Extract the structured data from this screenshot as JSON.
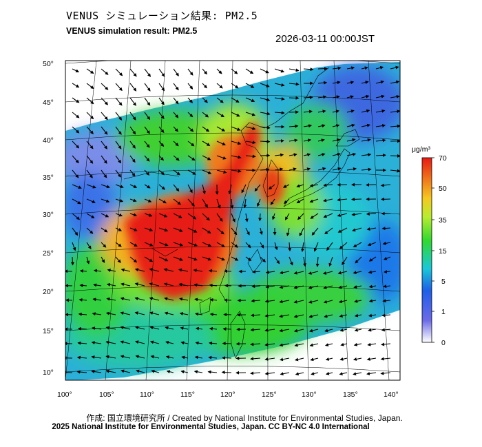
{
  "header": {
    "title_jp": "VENUS シミュレーション結果: PM2.5",
    "title_en": "VENUS simulation result: PM2.5",
    "timestamp": "2026-03-11 00:00JST"
  },
  "map": {
    "lat_ticks": [
      "50°",
      "45°",
      "40°",
      "35°",
      "30°",
      "25°",
      "20°",
      "15°",
      "10°"
    ],
    "lon_ticks": [
      "100°",
      "105°",
      "110°",
      "115°",
      "120°",
      "125°",
      "130°",
      "135°",
      "140°"
    ],
    "quantity": "PM2.5",
    "high_concentration_region": "eastern China / Korean Peninsula"
  },
  "colorbar": {
    "unit": "μg/m³",
    "labels": [
      "70",
      "50",
      "35",
      "15",
      "5",
      "1",
      "0"
    ],
    "colors": [
      "#ffffff",
      "#6a6ae8",
      "#1e5fe8",
      "#19c8d8",
      "#30d830",
      "#b8ec30",
      "#f5c820",
      "#f07a1a",
      "#e81a12"
    ]
  },
  "footer": {
    "credit_jp": "作成: 国立環境研究所 / Created by National Institute for Environmental Studies, Japan.",
    "copyright": "2025 National Institute for Environmental Studies, Japan. CC BY-NC 4.0 International"
  }
}
